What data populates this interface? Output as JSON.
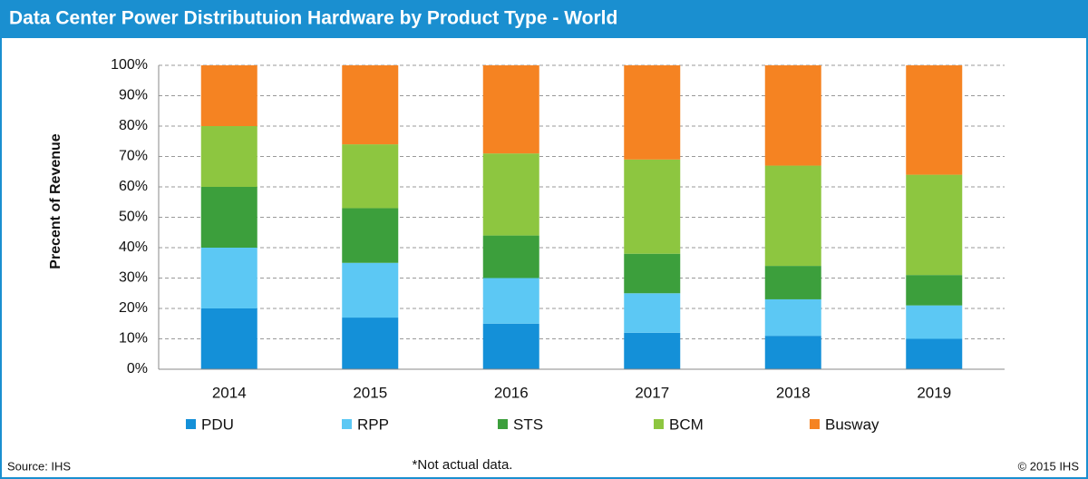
{
  "chart_data": {
    "type": "stacked_bar",
    "title": "Data Center Power Distributuion Hardware by Product Type - World",
    "y_label": "Precent of Revenue",
    "categories": [
      "2014",
      "2015",
      "2016",
      "2017",
      "2018",
      "2019"
    ],
    "series": [
      {
        "name": "PDU",
        "color": "#1490d8",
        "values": [
          20,
          17,
          15,
          12,
          11,
          10
        ]
      },
      {
        "name": "RPP",
        "color": "#5cc8f4",
        "values": [
          20,
          18,
          15,
          13,
          12,
          11
        ]
      },
      {
        "name": "STS",
        "color": "#3c9f3c",
        "values": [
          20,
          18,
          14,
          13,
          11,
          10
        ]
      },
      {
        "name": "BCM",
        "color": "#8dc640",
        "values": [
          20,
          21,
          27,
          31,
          33,
          33
        ]
      },
      {
        "name": "Busway",
        "color": "#f58322",
        "values": [
          20,
          26,
          29,
          31,
          33,
          36
        ]
      }
    ],
    "ylim": [
      0,
      100
    ],
    "yticks": [
      {
        "value": 0,
        "label": "0%"
      },
      {
        "value": 10,
        "label": "10%"
      },
      {
        "value": 20,
        "label": "20%"
      },
      {
        "value": 30,
        "label": "30%"
      },
      {
        "value": 40,
        "label": "40%"
      },
      {
        "value": 50,
        "label": "50%"
      },
      {
        "value": 60,
        "label": "60%"
      },
      {
        "value": 70,
        "label": "70%"
      },
      {
        "value": 80,
        "label": "80%"
      },
      {
        "value": 90,
        "label": "90%"
      },
      {
        "value": 100,
        "label": "100%"
      }
    ],
    "grid": true,
    "source": "Source: IHS",
    "note": "*Not actual data.",
    "copyright": "© 2015 IHS"
  }
}
